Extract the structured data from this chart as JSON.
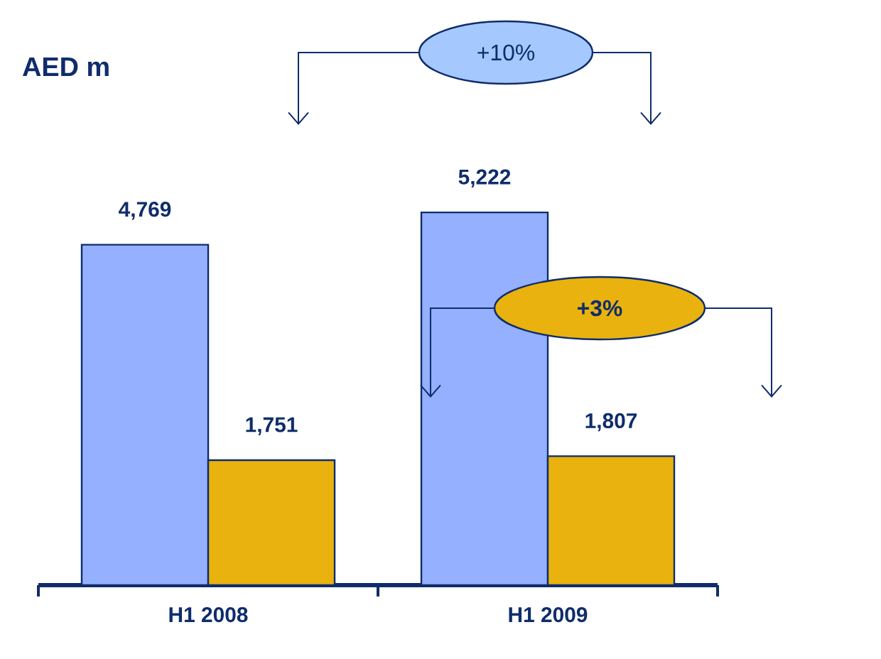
{
  "chart_data": {
    "type": "bar",
    "title": "AED m",
    "categories": [
      "H1 2008",
      "H1 2009"
    ],
    "series": [
      {
        "color": "#94b0ff",
        "values": [
          4769,
          5222
        ],
        "value_labels": [
          "4,769",
          "5,222"
        ]
      },
      {
        "color": "#e9b20e",
        "values": [
          1751,
          1807
        ],
        "value_labels": [
          "1,751",
          "1,807"
        ]
      }
    ],
    "annotations": [
      "+10%",
      "+3%"
    ]
  }
}
